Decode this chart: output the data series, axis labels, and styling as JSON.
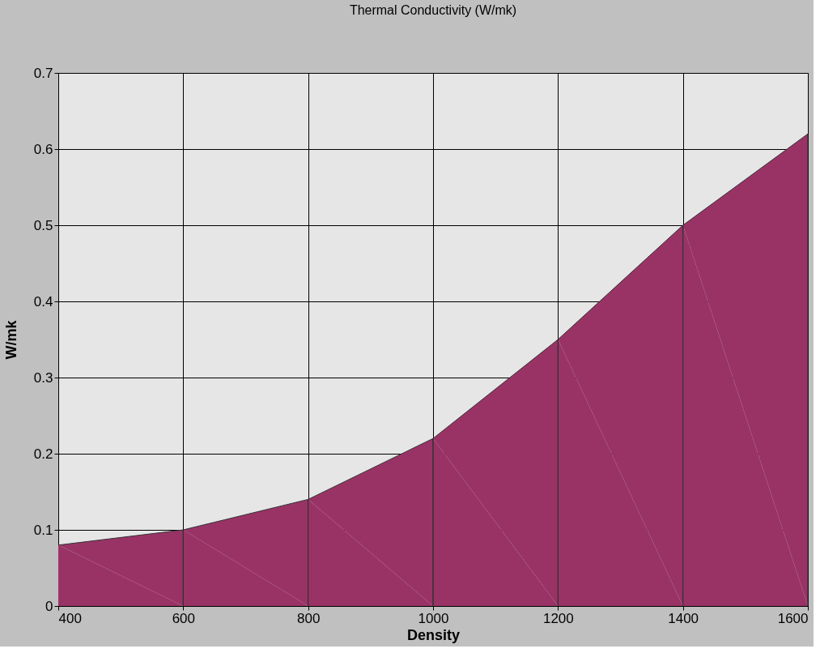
{
  "chart_data": {
    "type": "area",
    "title": "Thermal Conductivity (W/mk)",
    "xlabel": "Density",
    "ylabel": "W/mk",
    "x": [
      400,
      600,
      800,
      1000,
      1200,
      1400,
      1600
    ],
    "series": [
      {
        "color": "#993366",
        "values": [
          0.08,
          0.1,
          0.14,
          0.22,
          0.35,
          0.5,
          0.62
        ]
      }
    ],
    "xlim": [
      400,
      1600
    ],
    "xticks": [
      400,
      600,
      800,
      1000,
      1200,
      1400,
      1600
    ],
    "ylim": [
      0,
      0.7
    ],
    "yticks": [
      0,
      0.1,
      0.2,
      0.3,
      0.4,
      0.5,
      0.6,
      0.7
    ],
    "grid": true
  }
}
